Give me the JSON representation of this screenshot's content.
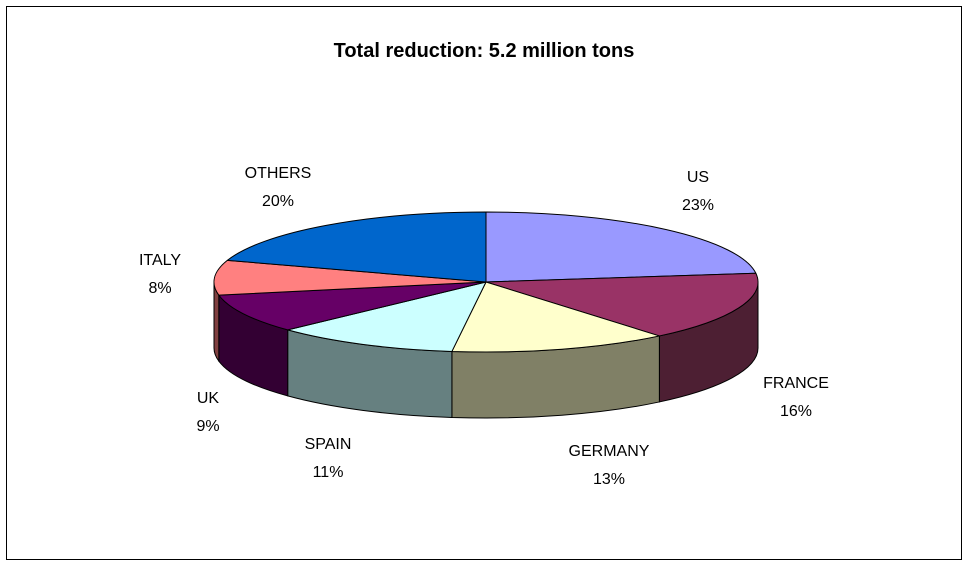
{
  "chart_data": {
    "type": "pie",
    "title": "Total reduction: 5.2 million tons",
    "slices": [
      {
        "label": "US",
        "value": 23,
        "pct_label": "23%",
        "color": "#9999ff",
        "side": "#7070c0"
      },
      {
        "label": "FRANCE",
        "value": 16,
        "pct_label": "16%",
        "color": "#993366",
        "side": "#4d1f33"
      },
      {
        "label": "GERMANY",
        "value": 13,
        "pct_label": "13%",
        "color": "#ffffcc",
        "side": "#808066"
      },
      {
        "label": "SPAIN",
        "value": 11,
        "pct_label": "11%",
        "color": "#ccffff",
        "side": "#668080"
      },
      {
        "label": "UK",
        "value": 9,
        "pct_label": "9%",
        "color": "#660066",
        "side": "#330033"
      },
      {
        "label": "ITALY",
        "value": 8,
        "pct_label": "8%",
        "color": "#ff8080",
        "side": "#804040"
      },
      {
        "label": "OTHERS",
        "value": 20,
        "pct_label": "20%",
        "color": "#0066cc",
        "side": "#003366"
      }
    ]
  }
}
